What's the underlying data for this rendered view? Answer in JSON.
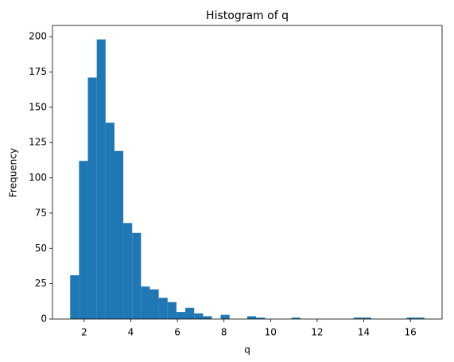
{
  "chart_data": {
    "type": "histogram",
    "title": "Histogram of q",
    "xlabel": "q",
    "ylabel": "Frequency",
    "color": "#1f77b4",
    "bins": [
      1.4,
      1.78,
      2.16,
      2.54,
      2.92,
      3.3,
      3.68,
      4.06,
      4.44,
      4.82,
      5.2,
      5.58,
      5.96,
      6.34,
      6.72,
      7.1,
      7.48,
      7.86,
      8.24,
      8.62,
      9.0,
      9.38,
      9.76,
      10.14,
      10.52,
      10.9,
      11.28,
      11.66,
      12.04,
      12.42,
      12.8,
      13.18,
      13.56,
      13.94,
      14.32,
      14.7,
      15.08,
      15.46,
      15.84,
      16.22,
      16.6
    ],
    "values": [
      31,
      112,
      171,
      198,
      139,
      119,
      68,
      61,
      23,
      21,
      15,
      12,
      5,
      8,
      4,
      2,
      0,
      3,
      0,
      0,
      2,
      1,
      0,
      0,
      0,
      1,
      0,
      0,
      0,
      0,
      0,
      0,
      1,
      1,
      0,
      0,
      0,
      0,
      1,
      1
    ],
    "xlim": [
      0.64,
      17.36
    ],
    "ylim": [
      0,
      207.9
    ],
    "xticks": [
      2,
      4,
      6,
      8,
      10,
      12,
      14,
      16
    ],
    "yticks": [
      0,
      25,
      50,
      75,
      100,
      125,
      150,
      175,
      200
    ]
  }
}
